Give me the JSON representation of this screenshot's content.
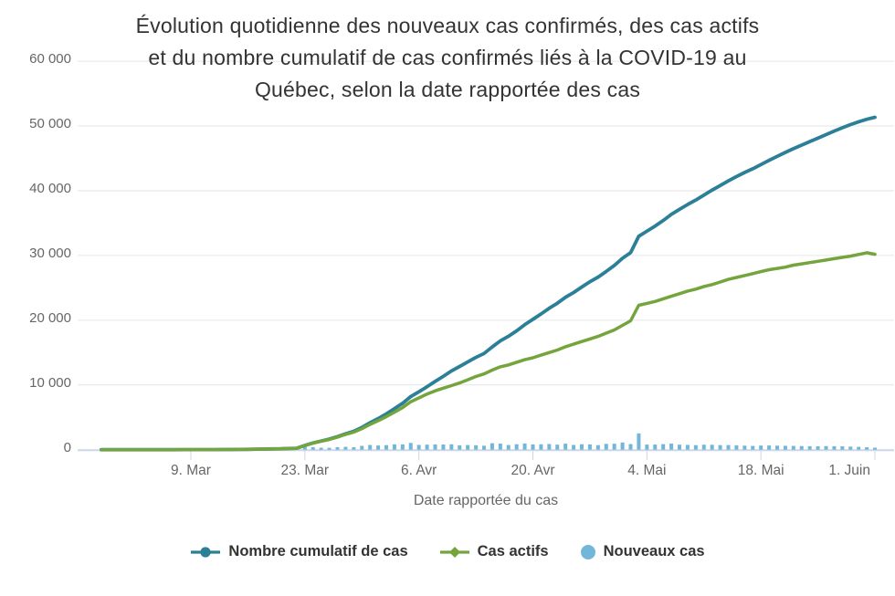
{
  "page": {
    "background": "#ffffff"
  },
  "title": {
    "lines": [
      "Évolution quotidienne des nouveaux cas confirmés, des cas actifs",
      "et du nombre cumulatif de cas confirmés liés à la COVID-19 au",
      "Québec, selon la date rapportée des cas"
    ]
  },
  "x_axis": {
    "title": "Date rapportée du cas"
  },
  "legend": {
    "items": [
      {
        "label": "Nombre cumulatif de cas",
        "marker": "line-circle"
      },
      {
        "label": "Cas actifs",
        "marker": "line-diamond"
      },
      {
        "label": "Nouveaux cas",
        "marker": "circle"
      }
    ]
  },
  "colors": {
    "cumulative": "#2b7f97",
    "active": "#74a53d",
    "new_cases": "#72b7d8",
    "grid": "#e6e6e6",
    "axis": "#ccd6eb",
    "tick_label": "#666666",
    "title_text": "#333333"
  },
  "chart_data": {
    "type": "mixed",
    "title": "Évolution quotidienne des nouveaux cas confirmés, des cas actifs et du nombre cumulatif de cas confirmés liés à la COVID-19 au Québec, selon la date rapportée des cas",
    "xlabel": "Date rapportée du cas",
    "ylabel": "",
    "ylim": [
      0,
      60000
    ],
    "y_tick_interval": 10000,
    "grid": "horizontal",
    "legend_position": "bottom",
    "x": [
      "2020-02-27",
      "2020-02-28",
      "2020-02-29",
      "2020-03-01",
      "2020-03-02",
      "2020-03-03",
      "2020-03-04",
      "2020-03-05",
      "2020-03-06",
      "2020-03-07",
      "2020-03-08",
      "2020-03-09",
      "2020-03-10",
      "2020-03-11",
      "2020-03-12",
      "2020-03-13",
      "2020-03-14",
      "2020-03-15",
      "2020-03-16",
      "2020-03-17",
      "2020-03-18",
      "2020-03-19",
      "2020-03-20",
      "2020-03-21",
      "2020-03-22",
      "2020-03-23",
      "2020-03-24",
      "2020-03-25",
      "2020-03-26",
      "2020-03-27",
      "2020-03-28",
      "2020-03-29",
      "2020-03-30",
      "2020-03-31",
      "2020-04-01",
      "2020-04-02",
      "2020-04-03",
      "2020-04-04",
      "2020-04-05",
      "2020-04-06",
      "2020-04-07",
      "2020-04-08",
      "2020-04-09",
      "2020-04-10",
      "2020-04-11",
      "2020-04-12",
      "2020-04-13",
      "2020-04-14",
      "2020-04-15",
      "2020-04-16",
      "2020-04-17",
      "2020-04-18",
      "2020-04-19",
      "2020-04-20",
      "2020-04-21",
      "2020-04-22",
      "2020-04-23",
      "2020-04-24",
      "2020-04-25",
      "2020-04-26",
      "2020-04-27",
      "2020-04-28",
      "2020-04-29",
      "2020-04-30",
      "2020-05-01",
      "2020-05-02",
      "2020-05-03",
      "2020-05-04",
      "2020-05-05",
      "2020-05-06",
      "2020-05-07",
      "2020-05-08",
      "2020-05-09",
      "2020-05-10",
      "2020-05-11",
      "2020-05-12",
      "2020-05-13",
      "2020-05-14",
      "2020-05-15",
      "2020-05-16",
      "2020-05-17",
      "2020-05-18",
      "2020-05-19",
      "2020-05-20",
      "2020-05-21",
      "2020-05-22",
      "2020-05-23",
      "2020-05-24",
      "2020-05-25",
      "2020-05-26",
      "2020-05-27",
      "2020-05-28",
      "2020-05-29",
      "2020-05-30",
      "2020-05-31",
      "2020-06-01"
    ],
    "x_ticks": [
      {
        "index": 11,
        "label": "9. Mar"
      },
      {
        "index": 25,
        "label": "23. Mar"
      },
      {
        "index": 39,
        "label": "6. Avr"
      },
      {
        "index": 53,
        "label": "20. Avr"
      },
      {
        "index": 67,
        "label": "4. Mai"
      },
      {
        "index": 81,
        "label": "18. Mai"
      },
      {
        "index": 95,
        "label": "1. Juin"
      }
    ],
    "y_ticks": [
      {
        "value": 0,
        "label": "0"
      },
      {
        "value": 10000,
        "label": "10 000"
      },
      {
        "value": 20000,
        "label": "20 000"
      },
      {
        "value": 30000,
        "label": "30 000"
      },
      {
        "value": 40000,
        "label": "40 000"
      },
      {
        "value": 50000,
        "label": "50 000"
      },
      {
        "value": 60000,
        "label": "60 000"
      }
    ],
    "series": [
      {
        "name": "Nombre cumulatif de cas",
        "type": "line",
        "color": "#2b7f97",
        "marker": "circle",
        "values": [
          2,
          3,
          3,
          3,
          3,
          4,
          4,
          5,
          6,
          7,
          8,
          10,
          12,
          15,
          20,
          27,
          35,
          45,
          56,
          80,
          100,
          127,
          145,
          187,
          220,
          650,
          1040,
          1340,
          1630,
          2020,
          2460,
          2840,
          3430,
          4160,
          4810,
          5520,
          6340,
          7160,
          8210,
          8950,
          9730,
          10540,
          11340,
          12170,
          12840,
          13560,
          14250,
          14860,
          15860,
          16800,
          17520,
          18360,
          19320,
          20130,
          20960,
          21840,
          22620,
          23550,
          24280,
          25120,
          25940,
          26640,
          27540,
          28460,
          29570,
          30440,
          32960,
          33750,
          34540,
          35400,
          36340,
          37120,
          37860,
          38560,
          39330,
          40090,
          40800,
          41520,
          42200,
          42820,
          43400,
          44040,
          44690,
          45310,
          45910,
          46490,
          47050,
          47590,
          48110,
          48670,
          49210,
          49730,
          50210,
          50650,
          51030,
          51340
        ]
      },
      {
        "name": "Cas actifs",
        "type": "line",
        "color": "#74a53d",
        "marker": "diamond",
        "values": [
          2,
          3,
          3,
          3,
          3,
          4,
          4,
          5,
          6,
          7,
          8,
          10,
          12,
          15,
          20,
          27,
          35,
          45,
          56,
          79,
          99,
          125,
          142,
          183,
          215,
          640,
          1020,
          1310,
          1580,
          1950,
          2360,
          2700,
          3240,
          3900,
          4480,
          5100,
          5800,
          6500,
          7400,
          8000,
          8600,
          9100,
          9500,
          9900,
          10300,
          10800,
          11300,
          11700,
          12300,
          12800,
          13100,
          13500,
          13900,
          14200,
          14600,
          15000,
          15400,
          15900,
          16300,
          16700,
          17100,
          17500,
          18000,
          18500,
          19200,
          19900,
          22300,
          22600,
          22900,
          23300,
          23700,
          24100,
          24500,
          24800,
          25200,
          25500,
          25900,
          26300,
          26600,
          26900,
          27200,
          27500,
          27800,
          28000,
          28200,
          28500,
          28700,
          28900,
          29100,
          29300,
          29500,
          29700,
          29900,
          30150,
          30420,
          30190
        ]
      },
      {
        "name": "Nouveaux cas",
        "type": "bar",
        "color": "#72b7d8",
        "values": [
          2,
          1,
          0,
          0,
          0,
          1,
          0,
          1,
          1,
          1,
          1,
          2,
          2,
          3,
          5,
          7,
          8,
          10,
          11,
          24,
          20,
          27,
          18,
          42,
          33,
          430,
          390,
          300,
          290,
          390,
          440,
          380,
          590,
          730,
          650,
          710,
          820,
          820,
          1050,
          740,
          780,
          810,
          800,
          830,
          670,
          720,
          690,
          610,
          1000,
          940,
          720,
          840,
          960,
          810,
          830,
          880,
          780,
          930,
          730,
          840,
          820,
          700,
          900,
          920,
          1110,
          870,
          2520,
          790,
          790,
          860,
          940,
          780,
          740,
          700,
          770,
          760,
          710,
          720,
          680,
          620,
          580,
          640,
          650,
          620,
          600,
          580,
          560,
          540,
          520,
          560,
          540,
          520,
          480,
          440,
          380,
          310
        ]
      }
    ]
  }
}
